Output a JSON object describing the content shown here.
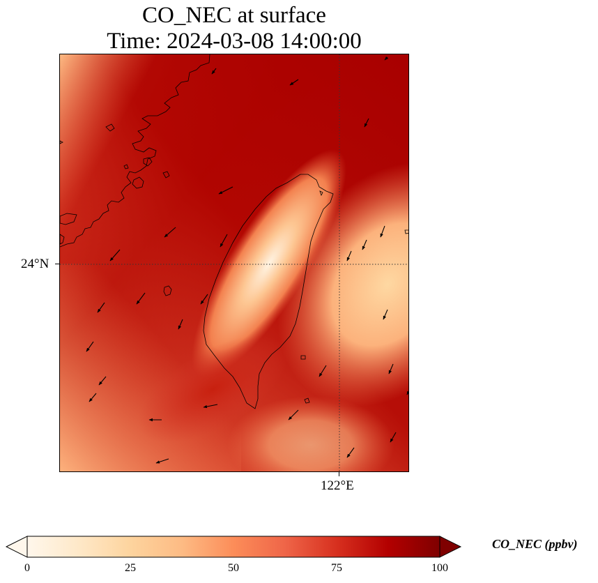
{
  "title": {
    "line1": "CO_NEC at surface",
    "line2": "Time: 2024-03-08 14:00:00"
  },
  "axes": {
    "lat_label": "24°N",
    "lon_label": "122°E"
  },
  "colorbar": {
    "label": "CO_NEC (ppbv)",
    "ticks": [
      "0",
      "25",
      "50",
      "75",
      "100"
    ],
    "min": 0,
    "max": 100,
    "colormap": [
      "#fff7ec",
      "#fee8c8",
      "#fdd49e",
      "#fdbb84",
      "#fc8d59",
      "#ef6548",
      "#d7301f",
      "#b30000",
      "#7f0000"
    ],
    "extend": "both"
  },
  "map": {
    "projection": "PlateCarree",
    "gridlines": "dotted",
    "features": [
      "coastline",
      "wind-vectors"
    ],
    "field": "CO_NEC concentration"
  }
}
